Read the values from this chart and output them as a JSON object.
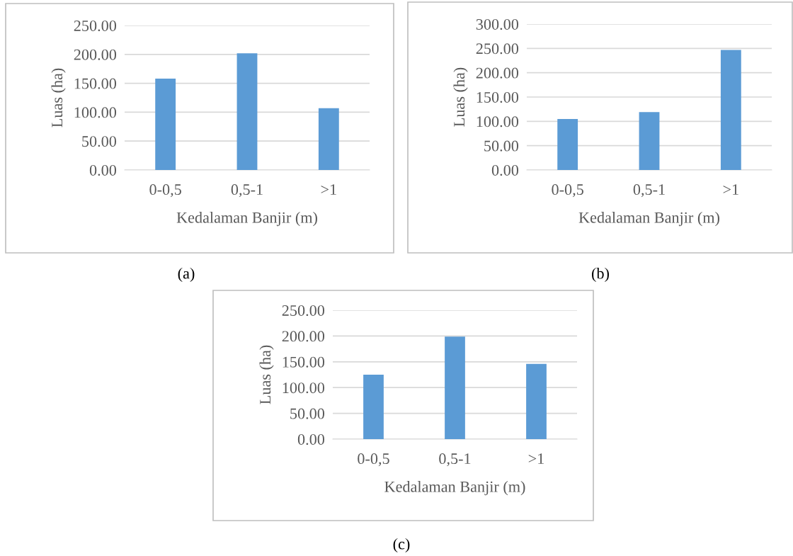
{
  "chart_data": [
    {
      "type": "bar",
      "categories": [
        "0-0,5",
        "0,5-1",
        ">1"
      ],
      "values": [
        158,
        202,
        107
      ],
      "color": "#5b9bd5",
      "xlabel": "Kedalaman Banjir (m)",
      "ylabel": "Luas (ha)",
      "ylim": [
        0,
        250
      ],
      "yticks": [
        {
          "value": 0,
          "label": "0.00"
        },
        {
          "value": 50,
          "label": "50.00"
        },
        {
          "value": 100,
          "label": "100.00"
        },
        {
          "value": 150,
          "label": "150.00"
        },
        {
          "value": 200,
          "label": "200.00"
        },
        {
          "value": 250,
          "label": "250.00"
        }
      ],
      "grid": "y",
      "annotations": [
        "(a)"
      ]
    },
    {
      "type": "bar",
      "categories": [
        "0-0,5",
        "0,5-1",
        ">1"
      ],
      "values": [
        105,
        119,
        247
      ],
      "color": "#5b9bd5",
      "xlabel": "Kedalaman Banjir (m)",
      "ylabel": "Luas (ha)",
      "ylim": [
        0,
        300
      ],
      "yticks": [
        {
          "value": 0,
          "label": "0.00"
        },
        {
          "value": 50,
          "label": "50.00"
        },
        {
          "value": 100,
          "label": "100.00"
        },
        {
          "value": 150,
          "label": "150.00"
        },
        {
          "value": 200,
          "label": "200.00"
        },
        {
          "value": 250,
          "label": "250.00"
        },
        {
          "value": 300,
          "label": "300.00"
        }
      ],
      "grid": "y",
      "annotations": [
        "(b)"
      ]
    },
    {
      "type": "bar",
      "categories": [
        "0-0,5",
        "0,5-1",
        ">1"
      ],
      "values": [
        125,
        199,
        146
      ],
      "color": "#5b9bd5",
      "xlabel": "Kedalaman Banjir (m)",
      "ylabel": "Luas (ha)",
      "ylim": [
        0,
        250
      ],
      "yticks": [
        {
          "value": 0,
          "label": "0.00"
        },
        {
          "value": 50,
          "label": "50.00"
        },
        {
          "value": 100,
          "label": "100.00"
        },
        {
          "value": 150,
          "label": "150.00"
        },
        {
          "value": 200,
          "label": "200.00"
        },
        {
          "value": 250,
          "label": "250.00"
        }
      ],
      "grid": "y",
      "annotations": [
        "(c)"
      ]
    }
  ]
}
